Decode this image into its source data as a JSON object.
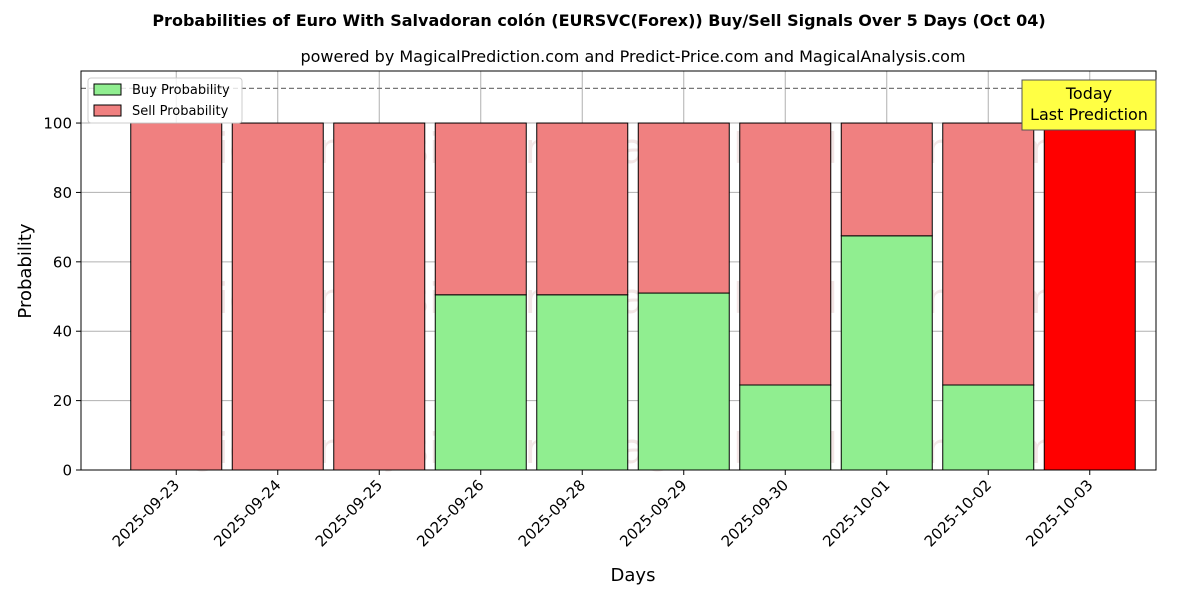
{
  "chart_data": {
    "type": "bar",
    "stacked": true,
    "title": "Probabilities of Euro With Salvadoran colón (EURSVC(Forex)) Buy/Sell Signals Over 5 Days (Oct 04)",
    "subtitle": "powered by MagicalPrediction.com and Predict-Price.com and MagicalAnalysis.com",
    "xlabel": "Days",
    "ylabel": "Probability",
    "ylim": [
      0,
      115
    ],
    "yticks": [
      0,
      20,
      40,
      60,
      80,
      100
    ],
    "grid": true,
    "legend_position": "top-left",
    "categories": [
      "2025-09-23",
      "2025-09-24",
      "2025-09-25",
      "2025-09-26",
      "2025-09-28",
      "2025-09-29",
      "2025-09-30",
      "2025-10-01",
      "2025-10-02",
      "2025-10-03"
    ],
    "series": [
      {
        "name": "Buy Probability",
        "color": "#90ee90",
        "values": [
          0,
          0,
          0,
          50.5,
          50.5,
          51,
          24.5,
          67.5,
          24.5,
          0
        ]
      },
      {
        "name": "Sell Probability",
        "color": "#f08080",
        "values": [
          100,
          100,
          100,
          49.5,
          49.5,
          49,
          75.5,
          32.5,
          75.5,
          100
        ]
      }
    ],
    "highlight": {
      "index": 9,
      "color": "#ff0000"
    },
    "reference_line": {
      "y": 110,
      "style": "dashed"
    },
    "annotation": {
      "lines": [
        "Today",
        "Last Prediction"
      ],
      "background": "#ffff44"
    },
    "watermarks": [
      "MagicalAnalysis.com",
      "MagicalPrediction.com"
    ]
  }
}
